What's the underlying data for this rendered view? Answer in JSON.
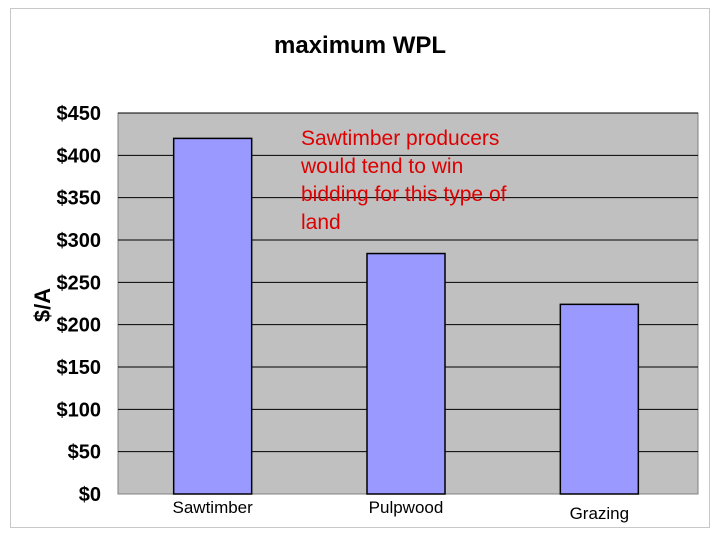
{
  "chart_data": {
    "type": "bar",
    "title": "maximum WPL",
    "xlabel": "",
    "ylabel": "$/A",
    "categories": [
      "Sawtimber",
      "Pulpwood",
      "Grazing"
    ],
    "values": [
      420,
      284,
      224
    ],
    "ylim": [
      0,
      450
    ],
    "yticks": [
      0,
      50,
      100,
      150,
      200,
      250,
      300,
      350,
      400,
      450
    ],
    "ytick_labels": [
      "$0",
      "$50",
      "$100",
      "$150",
      "$200",
      "$250",
      "$300",
      "$350",
      "$400",
      "$450"
    ],
    "grid": true,
    "legend": "none",
    "annotation": [
      "Sawtimber producers",
      "would tend to win",
      "bidding for this type of",
      "land"
    ],
    "colors": {
      "bar_fill": "#9999ff",
      "bar_stroke": "#000000",
      "plot_background": "#c0c0c0",
      "gridline": "#000000",
      "annotation": "#dd0000"
    }
  }
}
